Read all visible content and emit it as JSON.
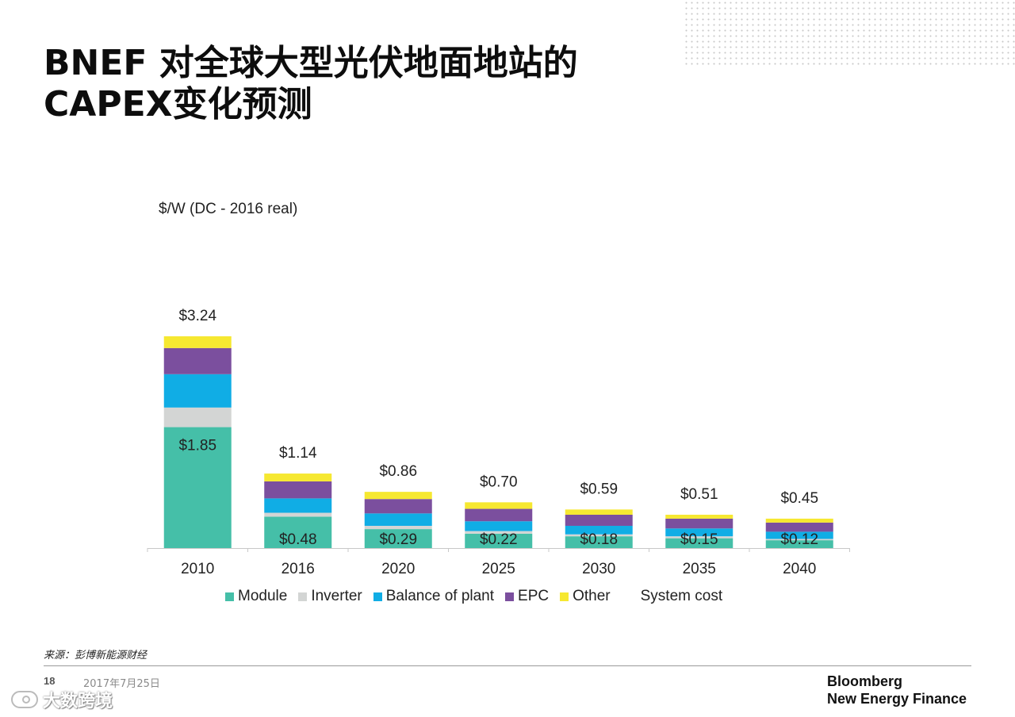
{
  "title_line1": "BNEF 对全球大型光伏地面地站的",
  "title_line2": "CAPEX变化预测",
  "unit_label": "$/W (DC - 2016 real)",
  "source": "来源：彭博新能源财经",
  "page_number": "18",
  "date": "2017年7月25日",
  "brand": {
    "line1": "Bloomberg",
    "line2": "New Energy Finance"
  },
  "watermark": "大数跨境",
  "legend": [
    {
      "label": "Module",
      "color": "#45bfa8"
    },
    {
      "label": "Inverter",
      "color": "#d3d5d4"
    },
    {
      "label": "Balance of plant",
      "color": "#10ade5"
    },
    {
      "label": "EPC",
      "color": "#7b4f9e"
    },
    {
      "label": "Other",
      "color": "#f6e831"
    },
    {
      "label": "System cost",
      "color": null
    }
  ],
  "chart_data": {
    "type": "bar",
    "stacked": true,
    "title": "BNEF 对全球大型光伏地面地站的CAPEX变化预测",
    "ylabel": "$/W (DC - 2016 real)",
    "ylim": [
      0,
      3.24
    ],
    "categories": [
      "2010",
      "2016",
      "2020",
      "2025",
      "2030",
      "2035",
      "2040"
    ],
    "series": [
      {
        "name": "Module",
        "color": "#45bfa8",
        "values": [
          1.85,
          0.48,
          0.29,
          0.22,
          0.18,
          0.15,
          0.12
        ]
      },
      {
        "name": "Inverter",
        "color": "#d3d5d4",
        "values": [
          0.3,
          0.06,
          0.05,
          0.04,
          0.03,
          0.03,
          0.02
        ]
      },
      {
        "name": "Balance of plant",
        "color": "#10ade5",
        "values": [
          0.51,
          0.22,
          0.19,
          0.15,
          0.13,
          0.12,
          0.11
        ]
      },
      {
        "name": "EPC",
        "color": "#7b4f9e",
        "values": [
          0.4,
          0.26,
          0.22,
          0.19,
          0.17,
          0.15,
          0.14
        ]
      },
      {
        "name": "Other",
        "color": "#f6e831",
        "values": [
          0.18,
          0.12,
          0.11,
          0.1,
          0.08,
          0.06,
          0.06
        ]
      }
    ],
    "totals": [
      3.24,
      1.14,
      0.86,
      0.7,
      0.59,
      0.51,
      0.45
    ],
    "total_labels": [
      "$3.24",
      "$1.14",
      "$0.86",
      "$0.70",
      "$0.59",
      "$0.51",
      "$0.45"
    ],
    "module_labels": [
      "$1.85",
      "$0.48",
      "$0.29",
      "$0.22",
      "$0.18",
      "$0.15",
      "$0.12"
    ]
  }
}
